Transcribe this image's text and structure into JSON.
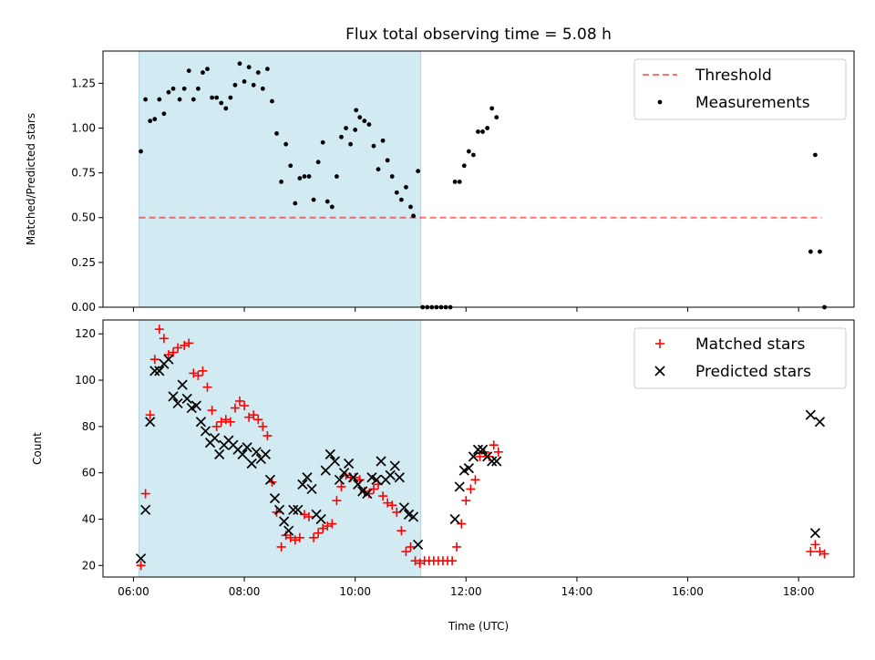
{
  "figure": {
    "title": "Flux total observing time = 5.08 h",
    "xlabel": "Time (UTC)"
  },
  "chart_data": [
    {
      "type": "scatter",
      "ylabel": "Matched/Predicted stars",
      "xlim": [
        "05:27",
        "19:00"
      ],
      "ylim": [
        0,
        1.43
      ],
      "xticks": [
        "06:00",
        "08:00",
        "10:00",
        "12:00",
        "14:00",
        "16:00",
        "18:00"
      ],
      "yticks": [
        0.0,
        0.25,
        0.5,
        0.75,
        1.0,
        1.25
      ],
      "ytick_labels": [
        "0.00",
        "0.25",
        "0.50",
        "0.75",
        "1.00",
        "1.25"
      ],
      "shaded_span": [
        "06:06",
        "11:11"
      ],
      "shaded_color": "#add8e6",
      "legend_position": "upper right",
      "threshold": {
        "name": "Threshold",
        "y": 0.5,
        "x": [
          "06:06",
          "18:25"
        ],
        "color": "#ff0000",
        "style": "dashed"
      },
      "series": [
        {
          "name": "Measurements",
          "marker": "dot",
          "color": "#000000",
          "points": [
            [
              "06:08",
              0.87
            ],
            [
              "06:13",
              1.16
            ],
            [
              "06:18",
              1.04
            ],
            [
              "06:23",
              1.05
            ],
            [
              "06:28",
              1.16
            ],
            [
              "06:33",
              1.08
            ],
            [
              "06:38",
              1.2
            ],
            [
              "06:43",
              1.22
            ],
            [
              "06:50",
              1.16
            ],
            [
              "06:55",
              1.22
            ],
            [
              "07:00",
              1.32
            ],
            [
              "07:05",
              1.16
            ],
            [
              "07:10",
              1.22
            ],
            [
              "07:15",
              1.31
            ],
            [
              "07:20",
              1.33
            ],
            [
              "07:25",
              1.17
            ],
            [
              "07:30",
              1.17
            ],
            [
              "07:35",
              1.14
            ],
            [
              "07:40",
              1.11
            ],
            [
              "07:45",
              1.17
            ],
            [
              "07:50",
              1.24
            ],
            [
              "07:55",
              1.36
            ],
            [
              "08:00",
              1.26
            ],
            [
              "08:05",
              1.34
            ],
            [
              "08:10",
              1.24
            ],
            [
              "08:15",
              1.31
            ],
            [
              "08:20",
              1.22
            ],
            [
              "08:25",
              1.33
            ],
            [
              "08:30",
              1.15
            ],
            [
              "08:35",
              0.97
            ],
            [
              "08:40",
              0.7
            ],
            [
              "08:45",
              0.91
            ],
            [
              "08:50",
              0.79
            ],
            [
              "08:55",
              0.58
            ],
            [
              "09:00",
              0.72
            ],
            [
              "09:05",
              0.73
            ],
            [
              "09:10",
              0.73
            ],
            [
              "09:15",
              0.6
            ],
            [
              "09:20",
              0.81
            ],
            [
              "09:25",
              0.92
            ],
            [
              "09:30",
              0.59
            ],
            [
              "09:35",
              0.56
            ],
            [
              "09:40",
              0.73
            ],
            [
              "09:45",
              0.95
            ],
            [
              "09:50",
              1.0
            ],
            [
              "09:55",
              0.91
            ],
            [
              "10:00",
              0.99
            ],
            [
              "10:01",
              1.1
            ],
            [
              "10:05",
              1.06
            ],
            [
              "10:10",
              1.04
            ],
            [
              "10:15",
              1.02
            ],
            [
              "10:20",
              0.9
            ],
            [
              "10:25",
              0.77
            ],
            [
              "10:30",
              0.93
            ],
            [
              "10:35",
              0.82
            ],
            [
              "10:40",
              0.73
            ],
            [
              "10:45",
              0.64
            ],
            [
              "10:50",
              0.6
            ],
            [
              "10:55",
              0.67
            ],
            [
              "11:00",
              0.56
            ],
            [
              "11:03",
              0.51
            ],
            [
              "11:08",
              0.76
            ],
            [
              "11:13",
              0.0
            ],
            [
              "11:18",
              0.0
            ],
            [
              "11:23",
              0.0
            ],
            [
              "11:28",
              0.0
            ],
            [
              "11:33",
              0.0
            ],
            [
              "11:38",
              0.0
            ],
            [
              "11:43",
              0.0
            ],
            [
              "11:48",
              0.7
            ],
            [
              "11:53",
              0.7
            ],
            [
              "11:58",
              0.79
            ],
            [
              "12:03",
              0.87
            ],
            [
              "12:08",
              0.85
            ],
            [
              "12:13",
              0.98
            ],
            [
              "12:18",
              0.98
            ],
            [
              "12:23",
              1.0
            ],
            [
              "12:28",
              1.11
            ],
            [
              "12:33",
              1.06
            ],
            [
              "18:13",
              0.31
            ],
            [
              "18:18",
              0.85
            ],
            [
              "18:23",
              0.31
            ],
            [
              "18:28",
              0.0
            ]
          ]
        }
      ]
    },
    {
      "type": "scatter",
      "ylabel": "Count",
      "xlim": [
        "05:27",
        "19:00"
      ],
      "ylim": [
        15,
        126
      ],
      "xticks": [
        "06:00",
        "08:00",
        "10:00",
        "12:00",
        "14:00",
        "16:00",
        "18:00"
      ],
      "yticks": [
        20,
        40,
        60,
        80,
        100,
        120
      ],
      "shaded_span": [
        "06:06",
        "11:11"
      ],
      "shaded_color": "#add8e6",
      "legend_position": "upper right",
      "series": [
        {
          "name": "Matched stars",
          "marker": "plus",
          "color": "#ff0000",
          "points": [
            [
              "06:08",
              20
            ],
            [
              "06:13",
              51
            ],
            [
              "06:18",
              85
            ],
            [
              "06:23",
              109
            ],
            [
              "06:28",
              122
            ],
            [
              "06:33",
              118
            ],
            [
              "06:38",
              111
            ],
            [
              "06:43",
              112
            ],
            [
              "06:48",
              114
            ],
            [
              "06:55",
              115
            ],
            [
              "07:00",
              116
            ],
            [
              "07:05",
              103
            ],
            [
              "07:10",
              102
            ],
            [
              "07:15",
              104
            ],
            [
              "07:20",
              97
            ],
            [
              "07:25",
              87
            ],
            [
              "07:30",
              80
            ],
            [
              "07:35",
              82
            ],
            [
              "07:40",
              83
            ],
            [
              "07:45",
              82
            ],
            [
              "07:50",
              88
            ],
            [
              "07:55",
              91
            ],
            [
              "08:00",
              89
            ],
            [
              "08:05",
              84
            ],
            [
              "08:10",
              85
            ],
            [
              "08:15",
              83
            ],
            [
              "08:20",
              80
            ],
            [
              "08:25",
              76
            ],
            [
              "08:30",
              56
            ],
            [
              "08:35",
              43
            ],
            [
              "08:40",
              28
            ],
            [
              "08:45",
              33
            ],
            [
              "08:50",
              32
            ],
            [
              "08:55",
              31
            ],
            [
              "09:00",
              32
            ],
            [
              "09:05",
              42
            ],
            [
              "09:10",
              41
            ],
            [
              "09:15",
              32
            ],
            [
              "09:20",
              34
            ],
            [
              "09:25",
              36
            ],
            [
              "09:30",
              37
            ],
            [
              "09:35",
              38
            ],
            [
              "09:40",
              48
            ],
            [
              "09:45",
              54
            ],
            [
              "09:50",
              59
            ],
            [
              "09:55",
              58
            ],
            [
              "10:00",
              58
            ],
            [
              "10:05",
              57
            ],
            [
              "10:10",
              52
            ],
            [
              "10:15",
              51
            ],
            [
              "10:20",
              53
            ],
            [
              "10:25",
              55
            ],
            [
              "10:30",
              50
            ],
            [
              "10:35",
              47
            ],
            [
              "10:40",
              46
            ],
            [
              "10:45",
              43
            ],
            [
              "10:50",
              35
            ],
            [
              "10:55",
              26
            ],
            [
              "11:00",
              28
            ],
            [
              "11:05",
              22
            ],
            [
              "11:10",
              21
            ],
            [
              "11:15",
              22
            ],
            [
              "11:20",
              22
            ],
            [
              "11:25",
              22
            ],
            [
              "11:30",
              22
            ],
            [
              "11:35",
              22
            ],
            [
              "11:40",
              22
            ],
            [
              "11:45",
              22
            ],
            [
              "11:50",
              28
            ],
            [
              "11:55",
              38
            ],
            [
              "12:00",
              48
            ],
            [
              "12:05",
              53
            ],
            [
              "12:10",
              57
            ],
            [
              "12:15",
              67
            ],
            [
              "12:20",
              69
            ],
            [
              "12:25",
              67
            ],
            [
              "12:30",
              72
            ],
            [
              "12:35",
              69
            ],
            [
              "18:13",
              26
            ],
            [
              "18:18",
              29
            ],
            [
              "18:23",
              26
            ],
            [
              "18:28",
              25
            ]
          ]
        },
        {
          "name": "Predicted stars",
          "marker": "x",
          "color": "#000000",
          "points": [
            [
              "06:08",
              23
            ],
            [
              "06:13",
              44
            ],
            [
              "06:18",
              82
            ],
            [
              "06:23",
              104
            ],
            [
              "06:28",
              104
            ],
            [
              "06:33",
              107
            ],
            [
              "06:38",
              109
            ],
            [
              "06:43",
              93
            ],
            [
              "06:48",
              90
            ],
            [
              "06:53",
              98
            ],
            [
              "06:58",
              92
            ],
            [
              "07:03",
              88
            ],
            [
              "07:08",
              89
            ],
            [
              "07:13",
              82
            ],
            [
              "07:18",
              78
            ],
            [
              "07:23",
              73
            ],
            [
              "07:28",
              75
            ],
            [
              "07:33",
              68
            ],
            [
              "07:38",
              72
            ],
            [
              "07:43",
              74
            ],
            [
              "07:48",
              72
            ],
            [
              "07:53",
              70
            ],
            [
              "07:58",
              68
            ],
            [
              "08:03",
              71
            ],
            [
              "08:08",
              64
            ],
            [
              "08:13",
              69
            ],
            [
              "08:18",
              66
            ],
            [
              "08:23",
              68
            ],
            [
              "08:28",
              57
            ],
            [
              "08:33",
              49
            ],
            [
              "08:38",
              44
            ],
            [
              "08:43",
              39
            ],
            [
              "08:48",
              35
            ],
            [
              "08:53",
              44
            ],
            [
              "08:58",
              44
            ],
            [
              "09:03",
              55
            ],
            [
              "09:08",
              58
            ],
            [
              "09:13",
              53
            ],
            [
              "09:18",
              42
            ],
            [
              "09:23",
              40
            ],
            [
              "09:28",
              61
            ],
            [
              "09:33",
              68
            ],
            [
              "09:38",
              65
            ],
            [
              "09:43",
              57
            ],
            [
              "09:48",
              60
            ],
            [
              "09:53",
              64
            ],
            [
              "09:58",
              58
            ],
            [
              "10:03",
              55
            ],
            [
              "10:08",
              52
            ],
            [
              "10:13",
              51
            ],
            [
              "10:18",
              58
            ],
            [
              "10:23",
              57
            ],
            [
              "10:28",
              65
            ],
            [
              "10:33",
              57
            ],
            [
              "10:38",
              59
            ],
            [
              "10:43",
              63
            ],
            [
              "10:48",
              58
            ],
            [
              "10:53",
              45
            ],
            [
              "10:58",
              42
            ],
            [
              "11:03",
              41
            ],
            [
              "11:08",
              29
            ],
            [
              "11:48",
              40
            ],
            [
              "11:53",
              54
            ],
            [
              "11:58",
              61
            ],
            [
              "12:03",
              62
            ],
            [
              "12:08",
              67
            ],
            [
              "12:13",
              70
            ],
            [
              "12:18",
              70
            ],
            [
              "12:23",
              67
            ],
            [
              "12:28",
              65
            ],
            [
              "12:33",
              65
            ],
            [
              "18:13",
              85
            ],
            [
              "18:18",
              34
            ],
            [
              "18:23",
              82
            ]
          ]
        }
      ]
    }
  ]
}
